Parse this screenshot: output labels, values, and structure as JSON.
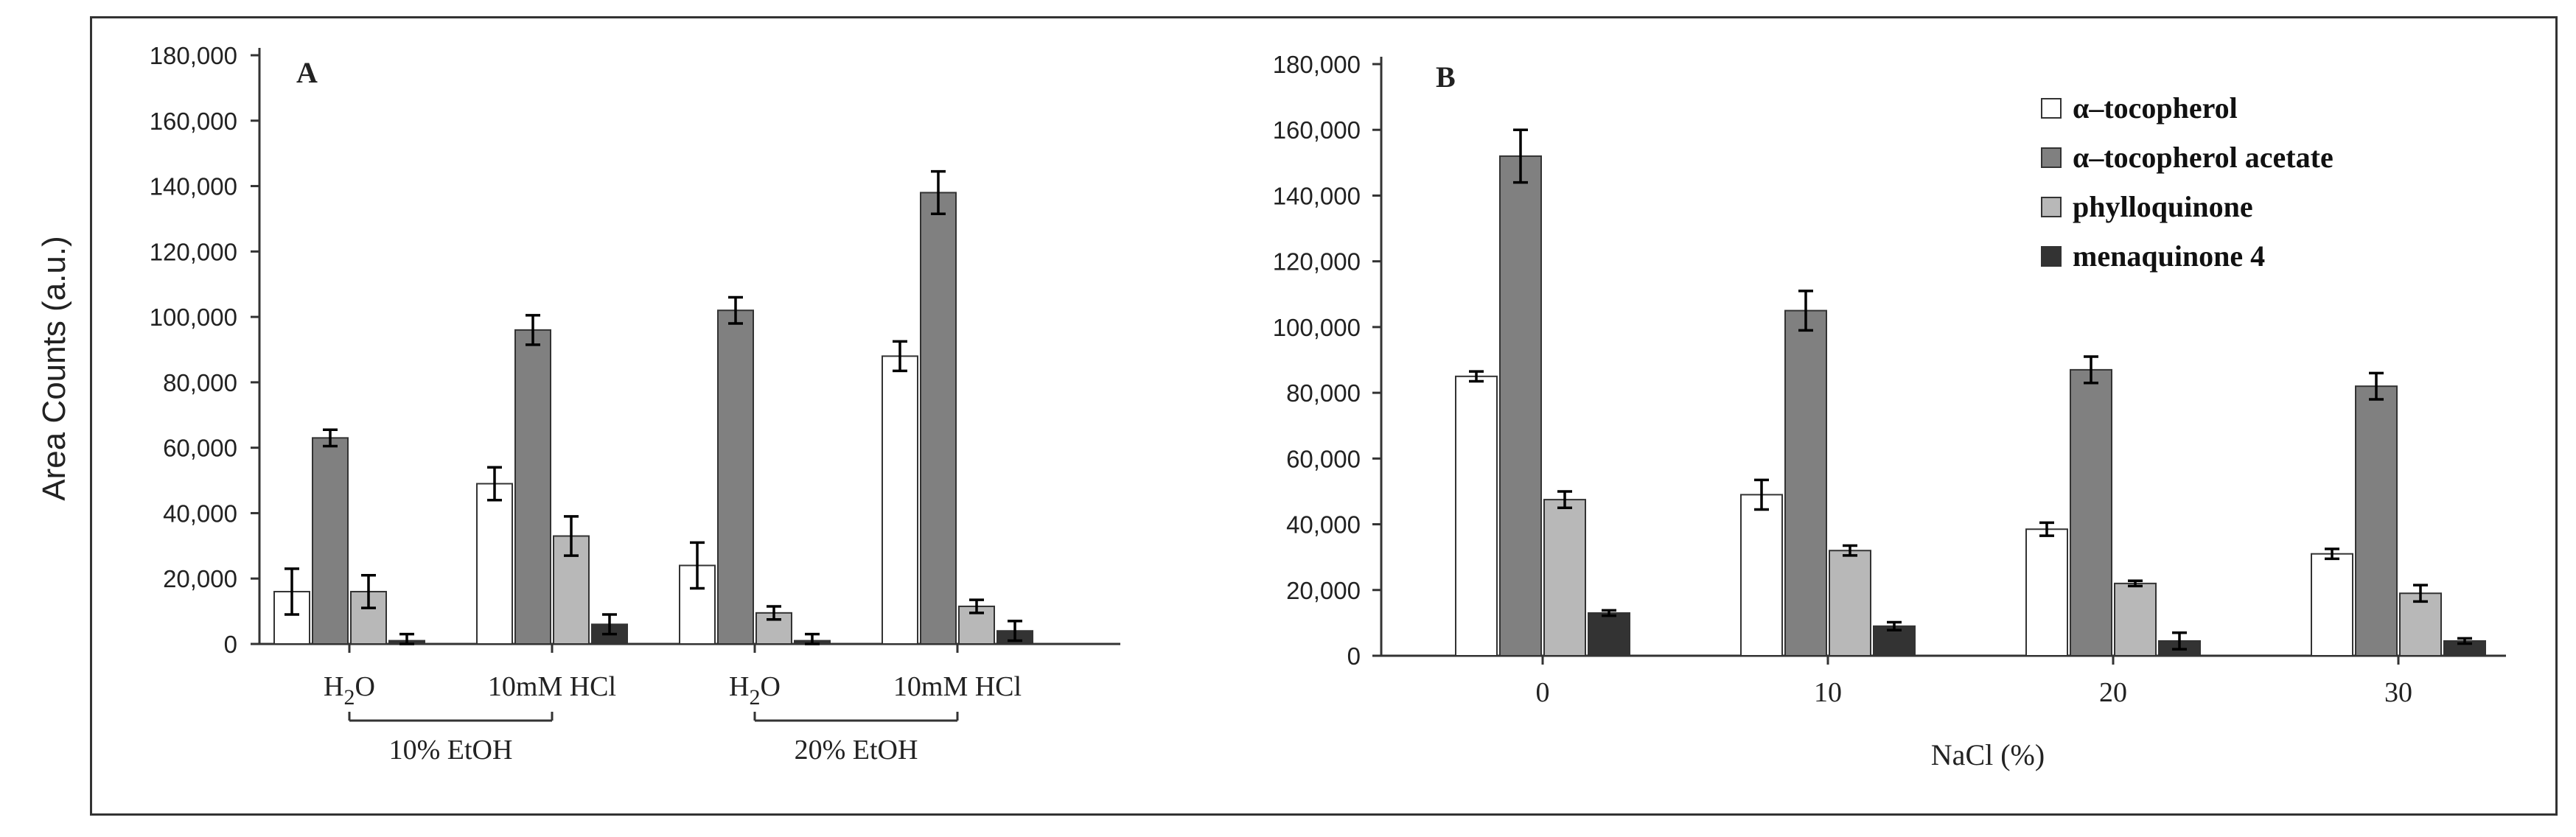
{
  "figure": {
    "ylabel": "Area Counts (a.u.)"
  },
  "legend": [
    {
      "name": "α–tocopherol",
      "color": "#ffffff"
    },
    {
      "name": "α–tocopherol acetate",
      "color": "#808080"
    },
    {
      "name": "phylloquinone",
      "color": "#b8b8b8"
    },
    {
      "name": "menaquinone 4",
      "color": "#333333"
    }
  ],
  "chart_data": [
    {
      "type": "bar",
      "panel": "A",
      "categories": [
        "H2O",
        "10mM HCl",
        "H2O",
        "10mM HCl"
      ],
      "groups": [
        {
          "label": "10% EtOH",
          "members": [
            0,
            1
          ]
        },
        {
          "label": "20% EtOH",
          "members": [
            2,
            3
          ]
        }
      ],
      "ylim": [
        0,
        180000
      ],
      "yticks": [
        "0",
        "20,000",
        "40,000",
        "60,000",
        "80,000",
        "100,000",
        "120,000",
        "140,000",
        "160,000",
        "180,000"
      ],
      "series": [
        {
          "name": "α–tocopherol",
          "values": [
            16000,
            49000,
            24000,
            88000
          ],
          "errors": [
            7000,
            5000,
            7000,
            4500
          ]
        },
        {
          "name": "α–tocopherol acetate",
          "values": [
            63000,
            96000,
            102000,
            138000
          ],
          "errors": [
            2500,
            4500,
            4000,
            6500
          ]
        },
        {
          "name": "phylloquinone",
          "values": [
            16000,
            33000,
            9500,
            11500
          ],
          "errors": [
            5000,
            6000,
            2000,
            2000
          ]
        },
        {
          "name": "menaquinone 4",
          "values": [
            1000,
            6000,
            1000,
            4000
          ],
          "errors": [
            2000,
            3000,
            2000,
            3000
          ]
        }
      ]
    },
    {
      "type": "bar",
      "panel": "B",
      "categories": [
        "0",
        "10",
        "20",
        "30"
      ],
      "xlabel": "NaCl (%)",
      "ylim": [
        0,
        180000
      ],
      "yticks": [
        "0",
        "20,000",
        "40,000",
        "60,000",
        "80,000",
        "100,000",
        "120,000",
        "140,000",
        "160,000",
        "180,000"
      ],
      "legend_position": "top-right",
      "series": [
        {
          "name": "α–tocopherol",
          "values": [
            85000,
            49000,
            38500,
            31000
          ],
          "errors": [
            1500,
            4500,
            2000,
            1500
          ]
        },
        {
          "name": "α–tocopherol acetate",
          "values": [
            152000,
            105000,
            87000,
            82000
          ],
          "errors": [
            8000,
            6000,
            4000,
            4000
          ]
        },
        {
          "name": "phylloquinone",
          "values": [
            47500,
            32000,
            22000,
            19000
          ],
          "errors": [
            2500,
            1500,
            800,
            2500
          ]
        },
        {
          "name": "menaquinone 4",
          "values": [
            13000,
            9000,
            4500,
            4500
          ],
          "errors": [
            800,
            1200,
            2500,
            800
          ]
        }
      ]
    }
  ]
}
